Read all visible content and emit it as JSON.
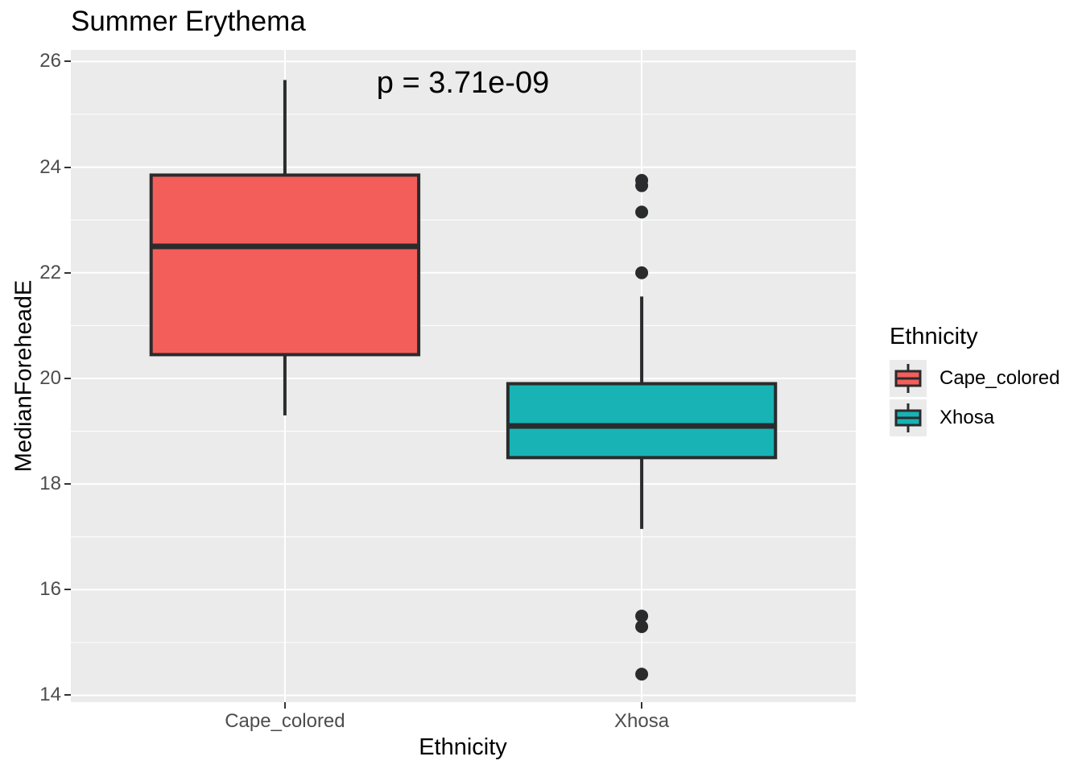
{
  "chart_data": {
    "type": "boxplot",
    "title": "Summer Erythema",
    "annotation": "p = 3.71e-09",
    "xlabel": "Ethnicity",
    "ylabel": "MedianForeheadE",
    "categories": [
      "Cape_colored",
      "Xhosa"
    ],
    "yticks": [
      26,
      24,
      22,
      20,
      18,
      16,
      14
    ],
    "yticks_minor": [
      25,
      23,
      21,
      19,
      17,
      15
    ],
    "ylim": [
      13.87,
      26.22
    ],
    "grid": true,
    "series": [
      {
        "name": "Cape_colored",
        "fill": "#F45E5A",
        "whisker_low": 19.3,
        "q1": 20.45,
        "median": 22.5,
        "q3": 23.85,
        "whisker_high": 25.65,
        "outliers": []
      },
      {
        "name": "Xhosa",
        "fill": "#18B3B5",
        "whisker_low": 17.15,
        "q1": 18.5,
        "median": 19.1,
        "q3": 19.9,
        "whisker_high": 21.55,
        "outliers": [
          23.75,
          23.65,
          23.15,
          22.0,
          15.5,
          15.3,
          14.4
        ]
      }
    ],
    "legend": {
      "title": "Ethnicity",
      "position": "right",
      "entries": [
        {
          "label": "Cape_colored",
          "color": "#F45E5A"
        },
        {
          "label": "Xhosa",
          "color": "#18B3B5"
        }
      ]
    },
    "style": {
      "panel_bg": "#EBEBEB",
      "grid_color": "#FFFFFF",
      "line_color": "#2A2B2D",
      "tick_label_color": "#4D4D4D",
      "tick_mark_color": "#333333",
      "text_color": "#000000"
    }
  }
}
